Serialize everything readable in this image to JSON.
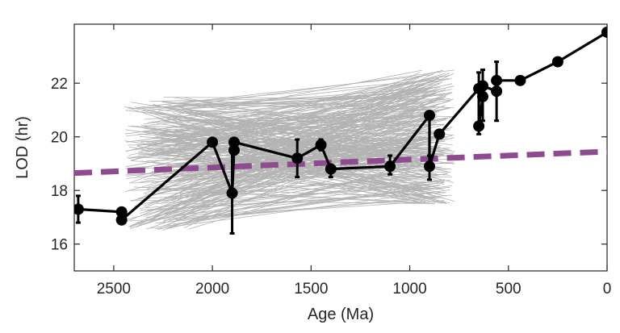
{
  "chart_data": {
    "type": "line",
    "title": "",
    "xlabel": "Age (Ma)",
    "ylabel": "LOD (hr)",
    "xlim": [
      2700,
      0
    ],
    "ylim": [
      15,
      24.2
    ],
    "x_reversed": true,
    "xticks": [
      2500,
      2000,
      1500,
      1000,
      500,
      0
    ],
    "yticks": [
      16,
      18,
      20,
      22
    ],
    "grid": false,
    "legend": "none",
    "colors": {
      "main_series": "#000000",
      "trend_line": "#8e4b8f",
      "ensemble": "#b3b3b3",
      "axes": "#262626"
    },
    "series": [
      {
        "style": "black line with circle markers and error bars",
        "points": [
          {
            "x": 2680,
            "y": 17.3,
            "err_low": 16.8,
            "err_high": 17.8
          },
          {
            "x": 2460,
            "y": 17.2
          },
          {
            "x": 2460,
            "y": 16.9,
            "err_low": 16.8,
            "err_high": 17.1
          },
          {
            "x": 2000,
            "y": 19.8
          },
          {
            "x": 1900,
            "y": 17.9,
            "err_low": 16.4,
            "err_high": 19.6
          },
          {
            "x": 1890,
            "y": 19.5
          },
          {
            "x": 1890,
            "y": 19.8
          },
          {
            "x": 1570,
            "y": 19.2,
            "err_low": 18.5,
            "err_high": 19.9
          },
          {
            "x": 1450,
            "y": 19.7,
            "err_low": 19.5,
            "err_high": 19.9
          },
          {
            "x": 1400,
            "y": 18.8,
            "err_low": 18.5,
            "err_high": 18.9
          },
          {
            "x": 1100,
            "y": 18.9,
            "err_low": 18.6,
            "err_high": 19.3
          },
          {
            "x": 900,
            "y": 20.8
          },
          {
            "x": 900,
            "y": 18.9,
            "err_low": 18.4,
            "err_high": 19.3
          },
          {
            "x": 850,
            "y": 20.1
          },
          {
            "x": 650,
            "y": 21.8,
            "err_low": 20.1,
            "err_high": 22.4
          },
          {
            "x": 650,
            "y": 20.4
          },
          {
            "x": 630,
            "y": 21.5,
            "err_low": 20.6,
            "err_high": 22.5
          },
          {
            "x": 630,
            "y": 21.9
          },
          {
            "x": 560,
            "y": 21.7,
            "err_low": 20.6,
            "err_high": 22.8
          },
          {
            "x": 560,
            "y": 22.1
          },
          {
            "x": 440,
            "y": 22.1
          },
          {
            "x": 250,
            "y": 22.8
          },
          {
            "x": 0,
            "y": 23.9
          }
        ]
      },
      {
        "style": "purple dashed trend line",
        "x": [
          2700,
          0
        ],
        "y": [
          18.65,
          19.45
        ]
      }
    ],
    "ensemble": {
      "style": "grey thin lines (random fits)",
      "line_count": 300,
      "x_range": [
        2450,
        770
      ],
      "y_range_start": [
        16.5,
        21.5
      ],
      "y_range_end": [
        17.5,
        22.5
      ]
    }
  }
}
